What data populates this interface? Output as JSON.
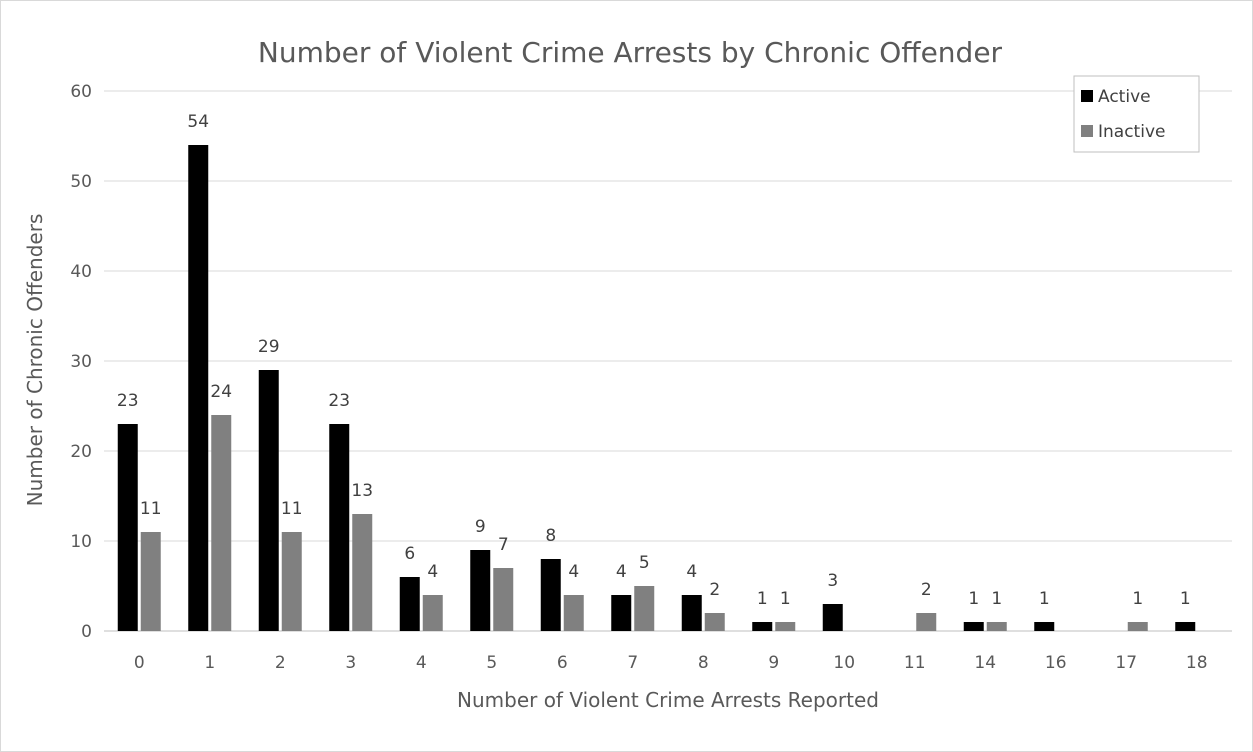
{
  "chart_data": {
    "type": "bar",
    "title": "Number of Violent Crime Arrests by Chronic Offender",
    "xlabel": "Number of Violent Crime Arrests Reported",
    "ylabel": "Number of Chronic Offenders",
    "categories": [
      "0",
      "1",
      "2",
      "3",
      "4",
      "5",
      "6",
      "7",
      "8",
      "9",
      "10",
      "11",
      "14",
      "16",
      "17",
      "18"
    ],
    "series": [
      {
        "name": "Active",
        "color": "#000000",
        "values": [
          23,
          54,
          29,
          23,
          6,
          9,
          8,
          4,
          4,
          1,
          3,
          null,
          1,
          1,
          null,
          1
        ]
      },
      {
        "name": "Inactive",
        "color": "#808080",
        "values": [
          11,
          24,
          11,
          13,
          4,
          7,
          4,
          5,
          2,
          1,
          null,
          2,
          1,
          null,
          1,
          null
        ]
      }
    ],
    "ylim": [
      0,
      60
    ],
    "yticks": [
      0,
      10,
      20,
      30,
      40,
      50,
      60
    ],
    "grid": true,
    "legend_position": "top-right",
    "data_labels": true
  }
}
